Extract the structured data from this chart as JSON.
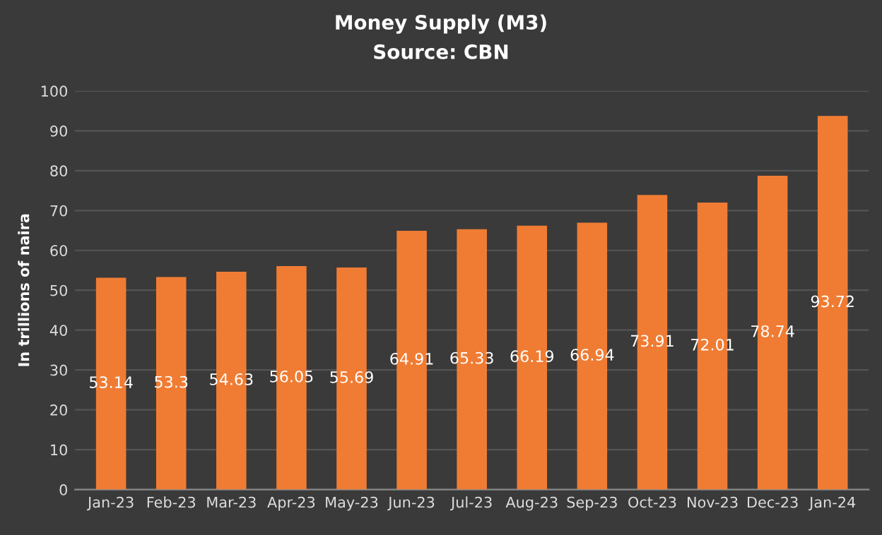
{
  "chart_data": {
    "type": "bar",
    "title": "Money Supply (M3)",
    "subtitle": "Source: CBN",
    "ylabel": "In trillions of naira",
    "categories": [
      "Jan-23",
      "Feb-23",
      "Mar-23",
      "Apr-23",
      "May-23",
      "Jun-23",
      "Jul-23",
      "Aug-23",
      "Sep-23",
      "Oct-23",
      "Nov-23",
      "Dec-23",
      "Jan-24"
    ],
    "values": [
      53.14,
      53.3,
      54.63,
      56.05,
      55.69,
      64.91,
      65.33,
      66.19,
      66.94,
      73.91,
      72.01,
      78.74,
      93.72
    ],
    "color": "#f07c33",
    "ylim": [
      0,
      100
    ],
    "yticks": [
      0,
      10,
      20,
      30,
      40,
      50,
      60,
      70,
      80,
      90,
      100
    ],
    "grid": "y",
    "data_labels": true,
    "legend": false
  }
}
